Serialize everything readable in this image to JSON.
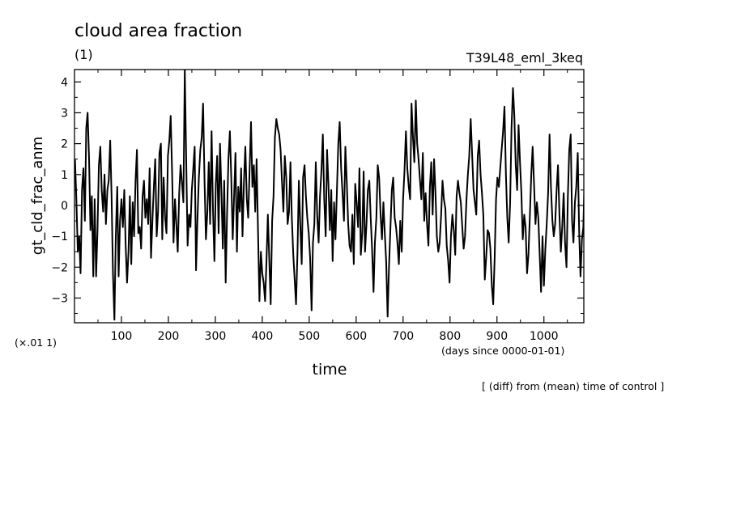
{
  "title": "cloud area fraction",
  "subtitle_left": "(1)",
  "subtitle_right": "T39L48_eml_3keq",
  "y_scale_note": "(×.01 1)",
  "x_units_note": "(days since 0000-01-01)",
  "footnote": "[ (diff) from (mean) time of control ]",
  "chart_data": {
    "type": "line",
    "title": "cloud area fraction",
    "xlabel": "time",
    "ylabel": "gt_cld_frac_anm",
    "xlim": [
      0,
      1085
    ],
    "ylim": [
      -3.8,
      4.4
    ],
    "x_ticks": [
      100,
      200,
      300,
      400,
      500,
      600,
      700,
      800,
      900,
      1000
    ],
    "y_ticks": [
      -3,
      -2,
      -1,
      0,
      1,
      2,
      3,
      4
    ],
    "x_tick_labels": [
      "100",
      "200",
      "300",
      "400",
      "500",
      "600",
      "700",
      "800",
      "900",
      "1000"
    ],
    "y_tick_labels": [
      "−3",
      "−2",
      "−1",
      "0",
      "1",
      "2",
      "3",
      "4"
    ],
    "grid": false,
    "series": [
      {
        "color": "#000000",
        "x_start": 1,
        "x_step": 3,
        "values": [
          1.5,
          0.2,
          -1.5,
          -1.0,
          -2.2,
          0.5,
          1.2,
          -0.5,
          2.5,
          3.0,
          1.5,
          -0.8,
          0.3,
          -2.3,
          0.2,
          -2.3,
          -0.8,
          1.3,
          1.9,
          0.5,
          -0.2,
          1.0,
          -0.6,
          0.5,
          0.8,
          2.1,
          0.3,
          -2.2,
          -3.7,
          -1.0,
          0.6,
          -2.3,
          -0.5,
          0.2,
          -0.7,
          0.5,
          -1.3,
          -2.5,
          -1.5,
          0.3,
          -1.9,
          0.1,
          -1.0,
          0.8,
          1.8,
          -0.9,
          -0.7,
          -1.4,
          0.3,
          0.8,
          -0.4,
          0.2,
          -0.6,
          1.2,
          -1.7,
          -0.5,
          0.6,
          1.5,
          -1.0,
          -0.2,
          1.7,
          2.0,
          -1.1,
          0.9,
          -0.4,
          -0.9,
          1.6,
          2.1,
          2.9,
          1.0,
          -1.2,
          0.2,
          -0.6,
          -1.5,
          0.4,
          1.3,
          0.7,
          0.1,
          4.4,
          1.4,
          -1.3,
          -0.3,
          -0.7,
          0.5,
          1.2,
          1.9,
          -2.1,
          -0.4,
          0.9,
          1.8,
          2.2,
          3.3,
          0.8,
          -1.1,
          -0.2,
          1.4,
          -0.6,
          2.4,
          -0.1,
          -1.8,
          0.7,
          1.6,
          -0.9,
          2.0,
          0.4,
          -1.4,
          0.8,
          -2.5,
          -0.3,
          1.5,
          2.4,
          0.9,
          -1.1,
          0.3,
          1.7,
          -1.5,
          0.6,
          -0.2,
          1.2,
          -1.0,
          0.8,
          1.9,
          0.2,
          -0.4,
          1.1,
          2.7,
          0.6,
          1.3,
          -0.2,
          1.5,
          -0.9,
          -3.1,
          -1.5,
          -2.2,
          -2.5,
          -3.1,
          -1.8,
          -0.3,
          -1.8,
          -3.2,
          -0.5,
          0.3,
          2.2,
          2.8,
          2.5,
          2.3,
          1.8,
          0.8,
          -0.2,
          1.6,
          0.9,
          -0.6,
          -0.2,
          1.4,
          -0.4,
          -1.6,
          -2.4,
          -3.2,
          -1.5,
          0.8,
          -0.6,
          -1.9,
          0.9,
          1.3,
          0.3,
          -0.4,
          -0.9,
          -1.7,
          -3.4,
          -1.2,
          -0.6,
          1.4,
          -0.3,
          -1.2,
          0.3,
          1.1,
          2.3,
          0.2,
          -1.0,
          1.8,
          0.7,
          -0.8,
          0.5,
          -1.8,
          0.1,
          -1.1,
          0.5,
          2.0,
          2.7,
          1.2,
          0.4,
          -0.5,
          1.9,
          0.8,
          -0.6,
          -1.3,
          -1.5,
          -0.3,
          -1.9,
          0.7,
          0.1,
          -0.7,
          1.2,
          -1.6,
          -0.9,
          1.1,
          -1.5,
          -0.6,
          0.5,
          0.8,
          -0.4,
          -1.4,
          -2.8,
          -1.2,
          -0.4,
          1.3,
          0.9,
          -0.3,
          -1.1,
          0.1,
          -0.9,
          -1.8,
          -3.6,
          -2.0,
          -0.7,
          0.5,
          0.9,
          -0.4,
          -0.7,
          -1.2,
          -1.9,
          -0.5,
          -1.5,
          0.2,
          1.1,
          2.4,
          1.2,
          0.6,
          0.2,
          3.3,
          2.2,
          1.4,
          3.4,
          2.0,
          1.5,
          0.8,
          0.2,
          1.7,
          -0.5,
          0.4,
          -0.6,
          -1.3,
          0.6,
          1.4,
          -0.3,
          1.5,
          0.4,
          -1.0,
          -1.5,
          -1.2,
          -0.3,
          0.8,
          0.2,
          -0.1,
          -1.3,
          -1.8,
          -2.5,
          -1.0,
          -0.3,
          -0.8,
          -1.6,
          0.3,
          0.8,
          0.4,
          0.1,
          -0.7,
          -1.4,
          -1.0,
          0.2,
          1.0,
          1.6,
          2.8,
          1.7,
          0.5,
          0.1,
          -0.3,
          1.6,
          2.1,
          1.0,
          0.4,
          -0.3,
          -2.4,
          -1.7,
          -0.8,
          -0.9,
          -1.4,
          -2.6,
          -3.2,
          -1.7,
          0.2,
          0.9,
          0.6,
          1.2,
          1.8,
          2.4,
          3.2,
          1.0,
          -0.4,
          -1.2,
          0.1,
          2.5,
          3.8,
          2.9,
          1.3,
          0.5,
          2.6,
          1.4,
          0.4,
          -1.1,
          -0.3,
          -0.7,
          -2.2,
          -1.6,
          -0.4,
          1.0,
          1.9,
          0.7,
          -0.6,
          0.1,
          -0.4,
          -1.6,
          -2.8,
          -1.0,
          -2.6,
          -1.4,
          -0.6,
          0.4,
          2.3,
          0.6,
          -0.5,
          -1.0,
          -0.6,
          0.5,
          1.3,
          -0.3,
          -1.5,
          -0.7,
          0.4,
          -1.2,
          -2.0,
          0.3,
          1.8,
          2.3,
          -0.5,
          -1.2,
          0.1,
          0.6,
          1.7,
          -0.8,
          -2.3,
          -1.1,
          -0.7,
          1.2
        ]
      }
    ]
  }
}
